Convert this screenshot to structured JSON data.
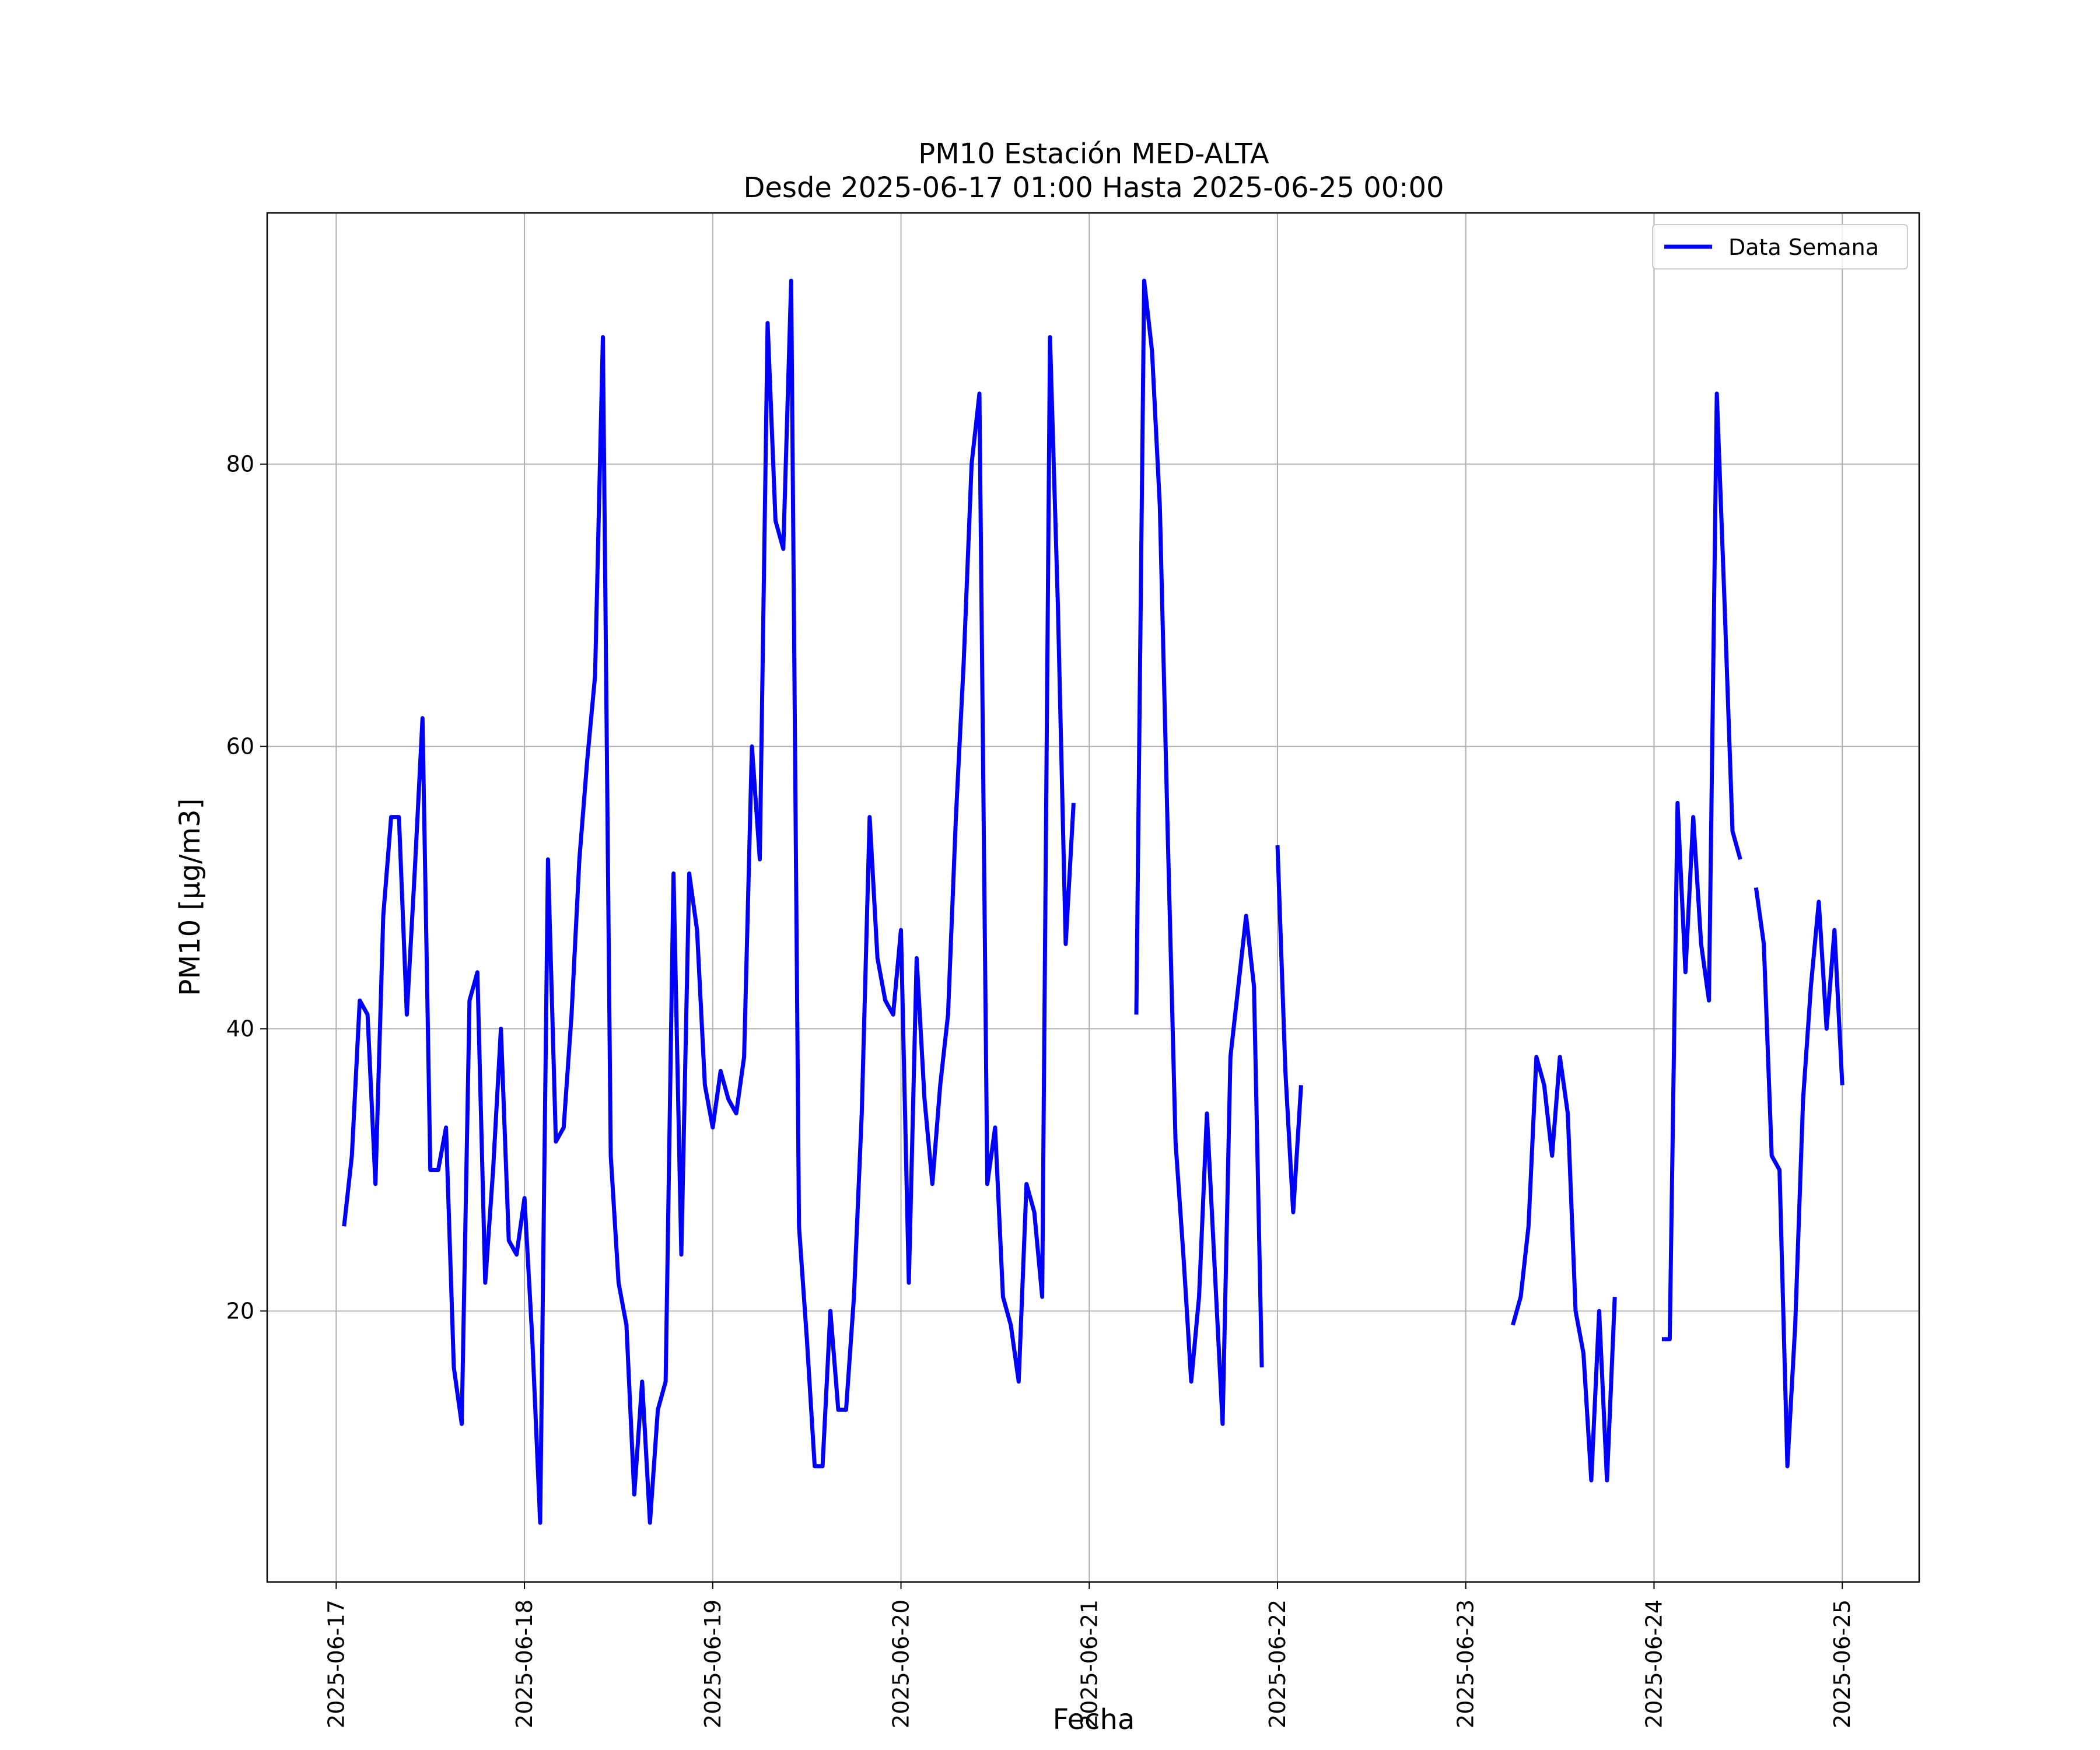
{
  "chart_data": {
    "type": "line",
    "title": "PM10 Estación MED-ALTA",
    "subtitle": "Desde 2025-06-17 01:00 Hasta 2025-06-25 00:00",
    "xlabel": "Fecha",
    "ylabel": "PM10 [μg/m3]",
    "ylim": [
      0.8,
      97.8
    ],
    "xlim": [
      "2025-06-16 15:12",
      "2025-06-25 09:48"
    ],
    "grid": true,
    "legend_position": "top-right",
    "x_ticks": [
      "2025-06-17",
      "2025-06-18",
      "2025-06-19",
      "2025-06-20",
      "2025-06-21",
      "2025-06-22",
      "2025-06-23",
      "2025-06-24",
      "2025-06-25"
    ],
    "y_ticks": [
      20,
      40,
      60,
      80
    ],
    "series": [
      {
        "name": "Data Semana",
        "color": "#0000ff",
        "points": [
          [
            "2025-06-17 01:00",
            26
          ],
          [
            "2025-06-17 02:00",
            31
          ],
          [
            "2025-06-17 03:00",
            42
          ],
          [
            "2025-06-17 04:00",
            41
          ],
          [
            "2025-06-17 05:00",
            29
          ],
          [
            "2025-06-17 06:00",
            48
          ],
          [
            "2025-06-17 07:00",
            55
          ],
          [
            "2025-06-17 08:00",
            55
          ],
          [
            "2025-06-17 09:00",
            41
          ],
          [
            "2025-06-17 10:00",
            51
          ],
          [
            "2025-06-17 11:00",
            62
          ],
          [
            "2025-06-17 12:00",
            30
          ],
          [
            "2025-06-17 13:00",
            30
          ],
          [
            "2025-06-17 14:00",
            33
          ],
          [
            "2025-06-17 15:00",
            16
          ],
          [
            "2025-06-17 16:00",
            12
          ],
          [
            "2025-06-17 17:00",
            42
          ],
          [
            "2025-06-17 18:00",
            44
          ],
          [
            "2025-06-17 19:00",
            22
          ],
          [
            "2025-06-17 20:00",
            30
          ],
          [
            "2025-06-17 21:00",
            40
          ],
          [
            "2025-06-17 22:00",
            25
          ],
          [
            "2025-06-17 23:00",
            24
          ],
          [
            "2025-06-18 00:00",
            28
          ],
          [
            "2025-06-18 01:00",
            18
          ],
          [
            "2025-06-18 02:00",
            5
          ],
          [
            "2025-06-18 03:00",
            52
          ],
          [
            "2025-06-18 04:00",
            32
          ],
          [
            "2025-06-18 05:00",
            33
          ],
          [
            "2025-06-18 06:00",
            41
          ],
          [
            "2025-06-18 07:00",
            52
          ],
          [
            "2025-06-18 08:00",
            59
          ],
          [
            "2025-06-18 09:00",
            65
          ],
          [
            "2025-06-18 10:00",
            89
          ],
          [
            "2025-06-18 11:00",
            31
          ],
          [
            "2025-06-18 12:00",
            22
          ],
          [
            "2025-06-18 13:00",
            19
          ],
          [
            "2025-06-18 14:00",
            7
          ],
          [
            "2025-06-18 15:00",
            15
          ],
          [
            "2025-06-18 16:00",
            5
          ],
          [
            "2025-06-18 17:00",
            13
          ],
          [
            "2025-06-18 18:00",
            15
          ],
          [
            "2025-06-18 19:00",
            51
          ],
          [
            "2025-06-18 20:00",
            24
          ],
          [
            "2025-06-18 21:00",
            51
          ],
          [
            "2025-06-18 22:00",
            47
          ],
          [
            "2025-06-18 23:00",
            36
          ],
          [
            "2025-06-19 00:00",
            33
          ],
          [
            "2025-06-19 01:00",
            37
          ],
          [
            "2025-06-19 02:00",
            35
          ],
          [
            "2025-06-19 03:00",
            34
          ],
          [
            "2025-06-19 04:00",
            38
          ],
          [
            "2025-06-19 05:00",
            60
          ],
          [
            "2025-06-19 06:00",
            52
          ],
          [
            "2025-06-19 07:00",
            90
          ],
          [
            "2025-06-19 08:00",
            76
          ],
          [
            "2025-06-19 09:00",
            74
          ],
          [
            "2025-06-19 10:00",
            93
          ],
          [
            "2025-06-19 11:00",
            26
          ],
          [
            "2025-06-19 12:00",
            18
          ],
          [
            "2025-06-19 13:00",
            9
          ],
          [
            "2025-06-19 14:00",
            9
          ],
          [
            "2025-06-19 15:00",
            20
          ],
          [
            "2025-06-19 16:00",
            13
          ],
          [
            "2025-06-19 17:00",
            13
          ],
          [
            "2025-06-19 18:00",
            21
          ],
          [
            "2025-06-19 19:00",
            34
          ],
          [
            "2025-06-19 20:00",
            55
          ],
          [
            "2025-06-19 21:00",
            45
          ],
          [
            "2025-06-19 22:00",
            42
          ],
          [
            "2025-06-19 23:00",
            41
          ],
          [
            "2025-06-20 00:00",
            47
          ],
          [
            "2025-06-20 01:00",
            22
          ],
          [
            "2025-06-20 02:00",
            45
          ],
          [
            "2025-06-20 03:00",
            35
          ],
          [
            "2025-06-20 04:00",
            29
          ],
          [
            "2025-06-20 05:00",
            36
          ],
          [
            "2025-06-20 06:00",
            41
          ],
          [
            "2025-06-20 07:00",
            55
          ],
          [
            "2025-06-20 08:00",
            66
          ],
          [
            "2025-06-20 09:00",
            80
          ],
          [
            "2025-06-20 10:00",
            85
          ],
          [
            "2025-06-20 11:00",
            29
          ],
          [
            "2025-06-20 12:00",
            33
          ],
          [
            "2025-06-20 13:00",
            21
          ],
          [
            "2025-06-20 14:00",
            19
          ],
          [
            "2025-06-20 15:00",
            15
          ],
          [
            "2025-06-20 16:00",
            29
          ],
          [
            "2025-06-20 17:00",
            27
          ],
          [
            "2025-06-20 18:00",
            21
          ],
          [
            "2025-06-20 19:00",
            89
          ],
          [
            "2025-06-20 20:00",
            70
          ],
          [
            "2025-06-20 21:00",
            46
          ],
          [
            "2025-06-20 22:00",
            56
          ],
          null,
          [
            "2025-06-21 06:00",
            41
          ],
          [
            "2025-06-21 07:00",
            93
          ],
          [
            "2025-06-21 08:00",
            88
          ],
          [
            "2025-06-21 09:00",
            77
          ],
          [
            "2025-06-21 10:00",
            54
          ],
          [
            "2025-06-21 11:00",
            32
          ],
          [
            "2025-06-21 12:00",
            24
          ],
          [
            "2025-06-21 13:00",
            15
          ],
          [
            "2025-06-21 14:00",
            21
          ],
          [
            "2025-06-21 15:00",
            34
          ],
          [
            "2025-06-21 16:00",
            23
          ],
          [
            "2025-06-21 17:00",
            12
          ],
          [
            "2025-06-21 18:00",
            38
          ],
          [
            "2025-06-21 19:00",
            43
          ],
          [
            "2025-06-21 20:00",
            48
          ],
          [
            "2025-06-21 21:00",
            43
          ],
          [
            "2025-06-21 22:00",
            16
          ],
          null,
          [
            "2025-06-22 00:00",
            53
          ],
          [
            "2025-06-22 01:00",
            37
          ],
          [
            "2025-06-22 02:00",
            27
          ],
          [
            "2025-06-22 03:00",
            36
          ],
          null,
          [
            "2025-06-23 06:00",
            19
          ],
          [
            "2025-06-23 07:00",
            21
          ],
          [
            "2025-06-23 08:00",
            26
          ],
          [
            "2025-06-23 09:00",
            38
          ],
          [
            "2025-06-23 10:00",
            36
          ],
          [
            "2025-06-23 11:00",
            31
          ],
          [
            "2025-06-23 12:00",
            38
          ],
          [
            "2025-06-23 13:00",
            34
          ],
          [
            "2025-06-23 14:00",
            20
          ],
          [
            "2025-06-23 15:00",
            17
          ],
          [
            "2025-06-23 16:00",
            8
          ],
          [
            "2025-06-23 17:00",
            20
          ],
          [
            "2025-06-23 18:00",
            8
          ],
          [
            "2025-06-23 19:00",
            21
          ],
          null,
          [
            "2025-06-24 01:00",
            18
          ],
          [
            "2025-06-24 02:00",
            18
          ],
          [
            "2025-06-24 03:00",
            56
          ],
          [
            "2025-06-24 04:00",
            44
          ],
          [
            "2025-06-24 05:00",
            55
          ],
          [
            "2025-06-24 06:00",
            46
          ],
          [
            "2025-06-24 07:00",
            42
          ],
          [
            "2025-06-24 08:00",
            85
          ],
          [
            "2025-06-24 09:00",
            70
          ],
          [
            "2025-06-24 10:00",
            54
          ],
          [
            "2025-06-24 11:00",
            52
          ],
          null,
          [
            "2025-06-24 13:00",
            50
          ],
          [
            "2025-06-24 14:00",
            46
          ],
          [
            "2025-06-24 15:00",
            31
          ],
          [
            "2025-06-24 16:00",
            30
          ],
          [
            "2025-06-24 17:00",
            9
          ],
          [
            "2025-06-24 18:00",
            19
          ],
          [
            "2025-06-24 19:00",
            35
          ],
          [
            "2025-06-24 20:00",
            43
          ],
          [
            "2025-06-24 21:00",
            49
          ],
          [
            "2025-06-24 22:00",
            40
          ],
          [
            "2025-06-24 23:00",
            47
          ],
          [
            "2025-06-25 00:00",
            36
          ]
        ]
      }
    ]
  }
}
